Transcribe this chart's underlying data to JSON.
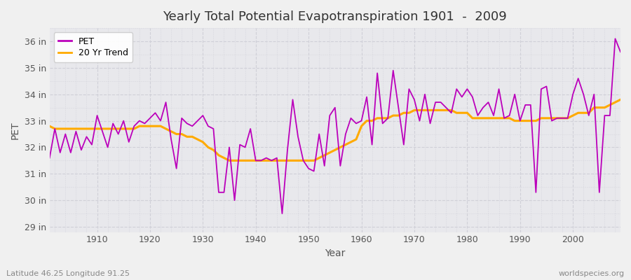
{
  "title": "Yearly Total Potential Evapotranspiration 1901  -  2009",
  "xlabel": "Year",
  "ylabel": "PET",
  "ylim": [
    28.8,
    36.5
  ],
  "yticks": [
    29,
    30,
    31,
    32,
    33,
    34,
    35,
    36
  ],
  "ytick_labels": [
    "29 in",
    "30 in",
    "31 in",
    "32 in",
    "33 in",
    "34 in",
    "35 in",
    "36 in"
  ],
  "xlim": [
    1901,
    2009
  ],
  "xticks": [
    1910,
    1920,
    1930,
    1940,
    1950,
    1960,
    1970,
    1980,
    1990,
    2000
  ],
  "pet_color": "#bb00bb",
  "trend_color": "#ffaa00",
  "fig_bg_color": "#f0f0f0",
  "plot_bg_color": "#e8e8ec",
  "grid_color": "#d0d0d8",
  "text_color": "#555555",
  "subtitle_left": "Latitude 46.25 Longitude 91.25",
  "subtitle_right": "worldspecies.org",
  "years": [
    1901,
    1902,
    1903,
    1904,
    1905,
    1906,
    1907,
    1908,
    1909,
    1910,
    1911,
    1912,
    1913,
    1914,
    1915,
    1916,
    1917,
    1918,
    1919,
    1920,
    1921,
    1922,
    1923,
    1924,
    1925,
    1926,
    1927,
    1928,
    1929,
    1930,
    1931,
    1932,
    1933,
    1934,
    1935,
    1936,
    1937,
    1938,
    1939,
    1940,
    1941,
    1942,
    1943,
    1944,
    1945,
    1946,
    1947,
    1948,
    1949,
    1950,
    1951,
    1952,
    1953,
    1954,
    1955,
    1956,
    1957,
    1958,
    1959,
    1960,
    1961,
    1962,
    1963,
    1964,
    1965,
    1966,
    1967,
    1968,
    1969,
    1970,
    1971,
    1972,
    1973,
    1974,
    1975,
    1976,
    1977,
    1978,
    1979,
    1980,
    1981,
    1982,
    1983,
    1984,
    1985,
    1986,
    1987,
    1988,
    1989,
    1990,
    1991,
    1992,
    1993,
    1994,
    1995,
    1996,
    1997,
    1998,
    1999,
    2000,
    2001,
    2002,
    2003,
    2004,
    2005,
    2006,
    2007,
    2008,
    2009
  ],
  "pet": [
    31.6,
    32.7,
    31.8,
    32.5,
    31.8,
    32.6,
    31.9,
    32.4,
    32.1,
    33.2,
    32.6,
    32.0,
    32.9,
    32.5,
    33.0,
    32.2,
    32.8,
    33.0,
    32.9,
    33.1,
    33.3,
    33.0,
    33.7,
    32.3,
    31.2,
    33.1,
    32.9,
    32.8,
    33.0,
    33.2,
    32.8,
    32.7,
    30.3,
    30.3,
    32.0,
    30.0,
    32.1,
    32.0,
    32.7,
    31.5,
    31.5,
    31.6,
    31.5,
    31.6,
    29.5,
    31.9,
    33.8,
    32.4,
    31.5,
    31.2,
    31.1,
    32.5,
    31.3,
    33.2,
    33.5,
    31.3,
    32.5,
    33.1,
    32.9,
    33.0,
    33.9,
    32.1,
    34.8,
    32.9,
    33.1,
    34.9,
    33.5,
    32.1,
    34.2,
    33.8,
    33.0,
    34.0,
    32.9,
    33.7,
    33.7,
    33.5,
    33.3,
    34.2,
    33.9,
    34.2,
    33.9,
    33.2,
    33.5,
    33.7,
    33.2,
    34.2,
    33.1,
    33.2,
    34.0,
    33.0,
    33.6,
    33.6,
    30.3,
    34.2,
    34.3,
    33.0,
    33.1,
    33.1,
    33.1,
    34.0,
    34.6,
    34.0,
    33.2,
    34.0,
    30.3,
    33.2,
    33.2,
    36.1,
    35.6
  ],
  "trend": [
    32.8,
    32.7,
    32.7,
    32.7,
    32.7,
    32.7,
    32.7,
    32.7,
    32.7,
    32.7,
    32.7,
    32.7,
    32.7,
    32.7,
    32.7,
    32.7,
    32.7,
    32.8,
    32.8,
    32.8,
    32.8,
    32.8,
    32.7,
    32.6,
    32.5,
    32.5,
    32.4,
    32.4,
    32.3,
    32.2,
    32.0,
    31.9,
    31.7,
    31.6,
    31.5,
    31.5,
    31.5,
    31.5,
    31.5,
    31.5,
    31.5,
    31.5,
    31.5,
    31.5,
    31.5,
    31.5,
    31.5,
    31.5,
    31.5,
    31.5,
    31.5,
    31.6,
    31.7,
    31.8,
    31.9,
    32.0,
    32.1,
    32.2,
    32.3,
    32.8,
    33.0,
    33.0,
    33.1,
    33.1,
    33.1,
    33.2,
    33.2,
    33.3,
    33.3,
    33.4,
    33.4,
    33.4,
    33.4,
    33.4,
    33.4,
    33.4,
    33.4,
    33.3,
    33.3,
    33.3,
    33.1,
    33.1,
    33.1,
    33.1,
    33.1,
    33.1,
    33.1,
    33.1,
    33.0,
    33.0,
    33.0,
    33.0,
    33.0,
    33.1,
    33.1,
    33.1,
    33.1,
    33.1,
    33.1,
    33.2,
    33.3,
    33.3,
    33.3,
    33.5,
    33.5,
    33.5,
    33.6,
    33.7,
    33.8
  ]
}
